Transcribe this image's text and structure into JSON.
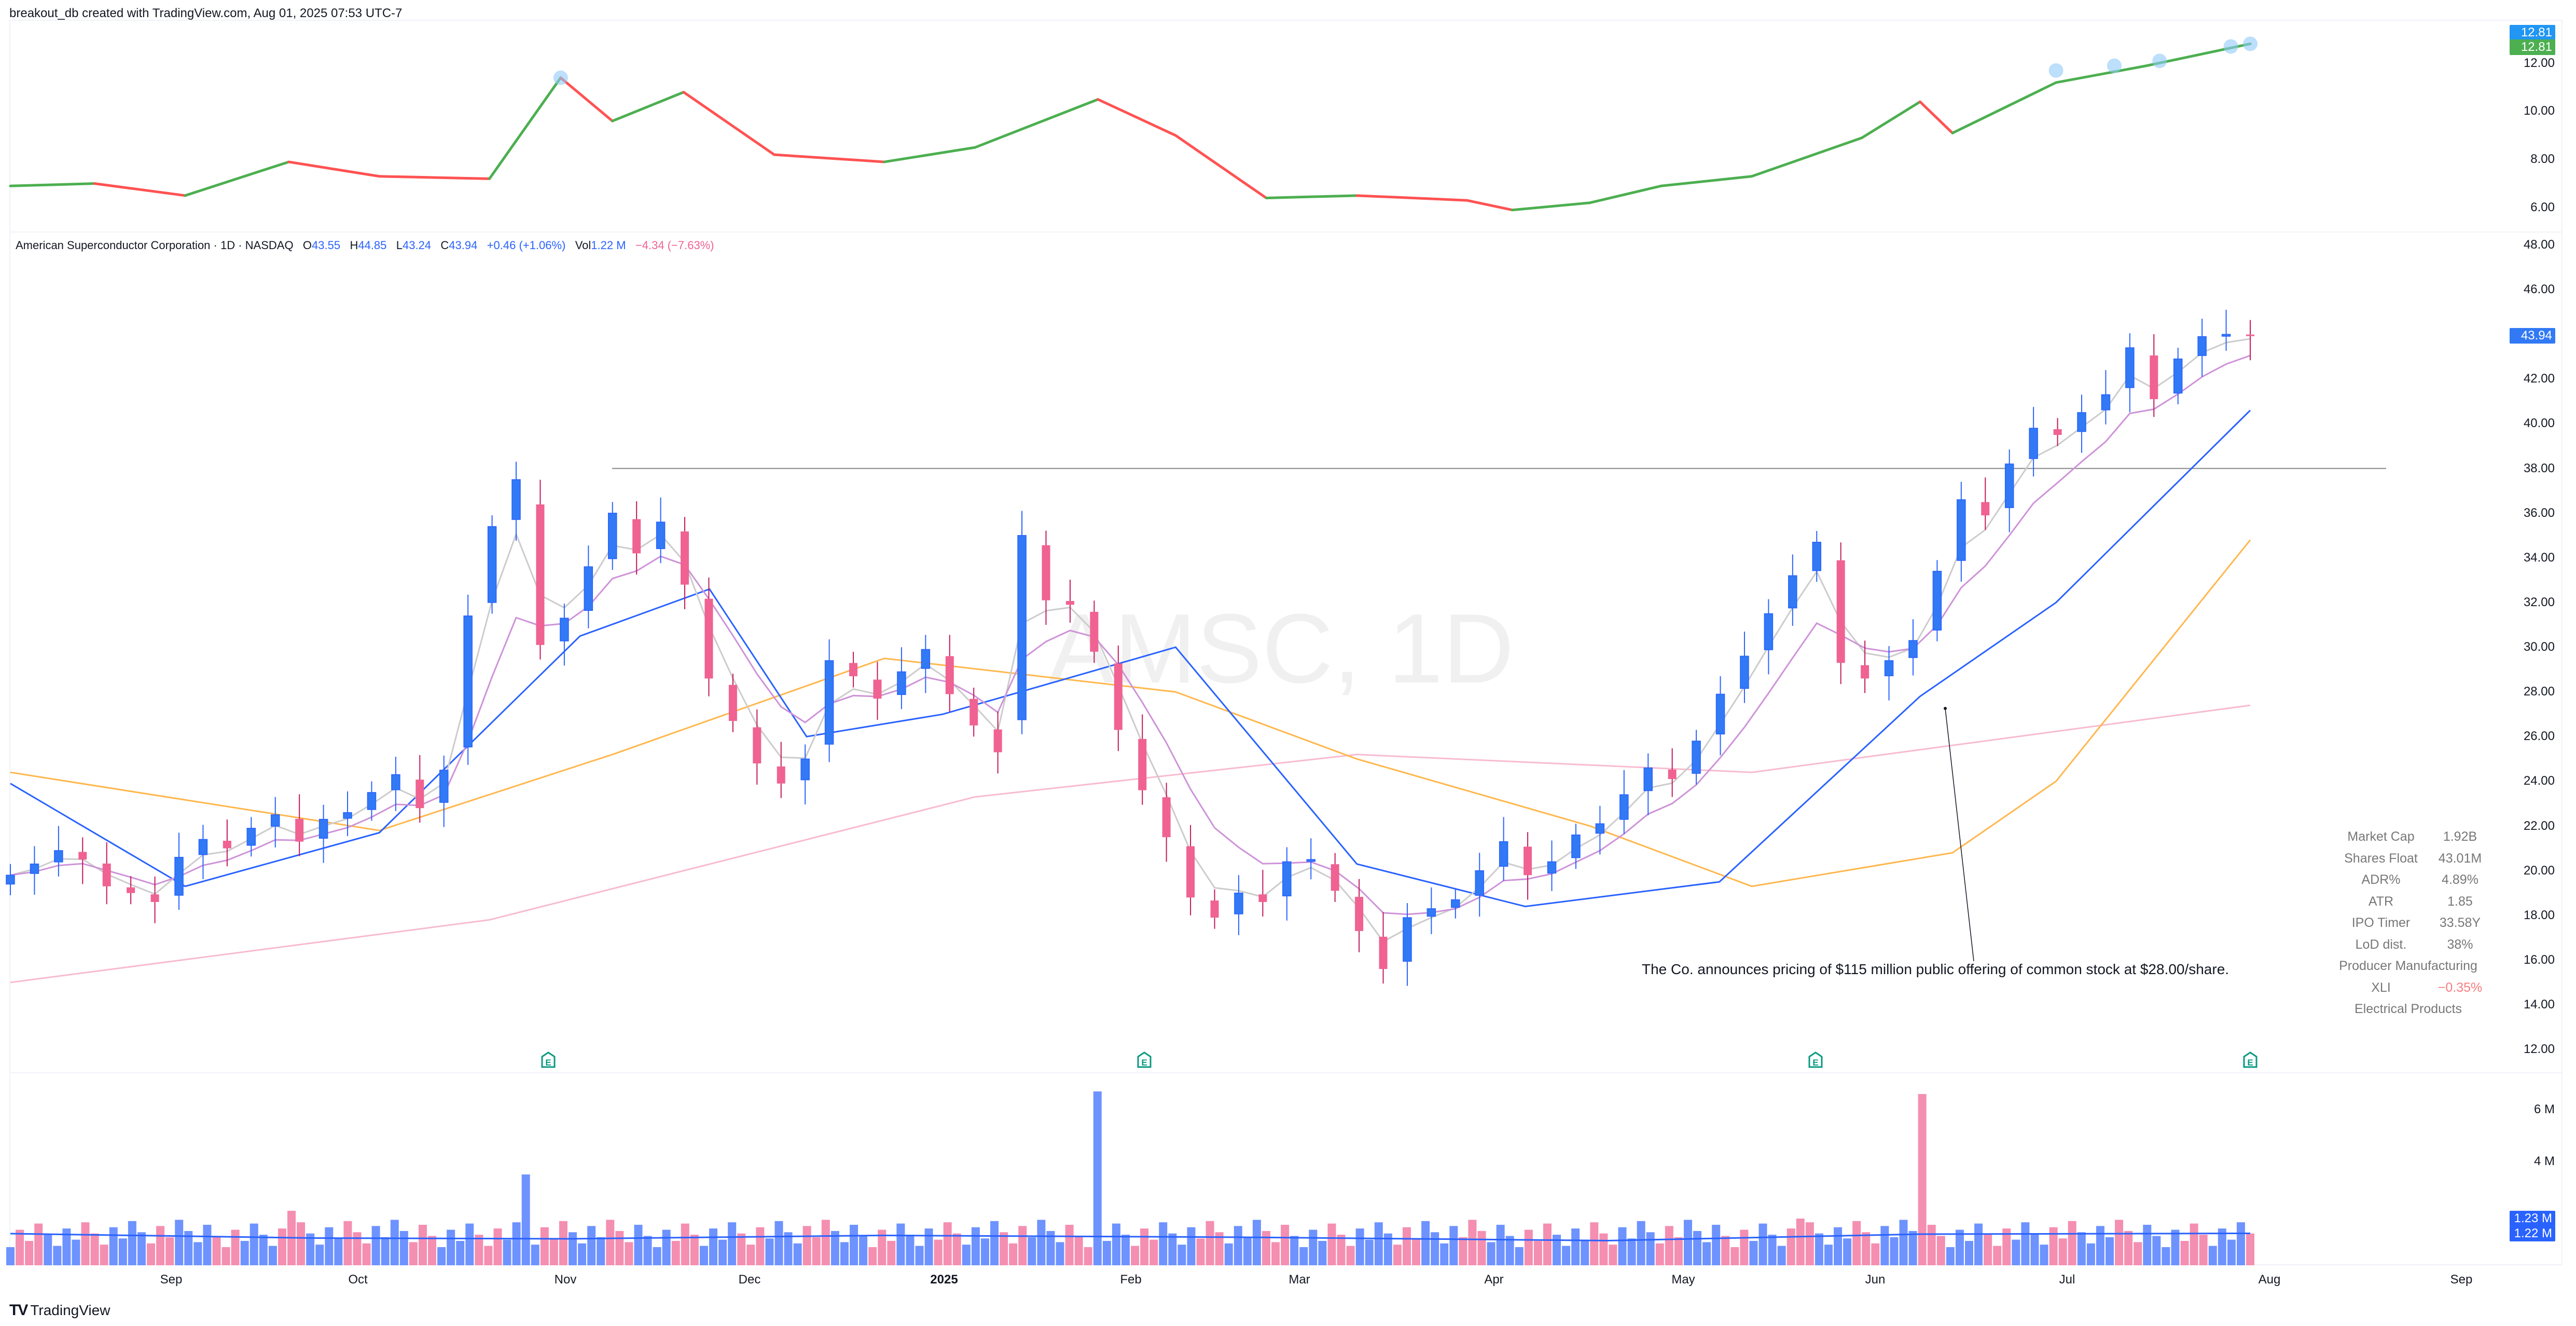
{
  "header": {
    "attribution": "breakout_db created with TradingView.com, Aug 01, 2025 07:53 UTC-7"
  },
  "legend": {
    "title": "American Superconductor Corporation · 1D · NASDAQ",
    "open_label": "O",
    "open": "43.55",
    "high_label": "H",
    "high": "44.85",
    "low_label": "L",
    "low": "43.24",
    "close_label": "C",
    "close": "43.94",
    "change": "+0.46 (+1.06%)",
    "vol_label": "Vol",
    "vol": "1.22 M",
    "rs_change": "−4.34 (−7.63%)"
  },
  "watermark": "AMSC, 1D",
  "annotation": {
    "text": "The Co. announces pricing of $115 million public offering of common stock at $28.00/share."
  },
  "stats_table": [
    {
      "key": "Market Cap",
      "value": "1.92B"
    },
    {
      "key": "Shares Float",
      "value": "43.01M"
    },
    {
      "key": "ADR%",
      "value": "4.89%"
    },
    {
      "key": "ATR",
      "value": "1.85"
    },
    {
      "key": "IPO Timer",
      "value": "33.58Y"
    },
    {
      "key": "LoD dist.",
      "value": "38%"
    },
    {
      "full": "Producer Manufacturing"
    },
    {
      "key": "XLI",
      "value": "−0.35%",
      "negative": true
    },
    {
      "full": "Electrical Products"
    }
  ],
  "tags": {
    "rs_a": "12.81",
    "rs_b": "12.81",
    "last_price": "43.94",
    "vol_ma": "1.23 M",
    "vol": "1.22 M"
  },
  "footer": {
    "logo": "TV",
    "brand": "TradingView"
  },
  "colors": {
    "up": "#2962ff",
    "up_body": "#3179f5",
    "down": "#f06292",
    "down_wick": "#c2185b",
    "vol_up": "#6e93ff",
    "vol_down": "#f48fb1",
    "ema_fast": "#cccccc",
    "ema_10": "#ce93d8",
    "ema_21": "#2962ff",
    "sma_50": "#ffb74d",
    "sma_200": "#f8bbd0",
    "rs_up": "#4caf50",
    "rs_down": "#ff5252",
    "rs_highlight": "#90caf9",
    "tag_blue": "#2196f3",
    "tag_green": "#4caf50",
    "tag_price": "#3179f5",
    "tag_vol": "#2962ff",
    "earnings": "#089981"
  },
  "chart_data": [
    {
      "type": "line",
      "title": "Relative strength line (top pane)",
      "ylim": [
        5.5,
        13.2
      ],
      "yticks": [
        "12.00",
        "10.00",
        "8.00",
        "6.00"
      ],
      "x": [
        "2024-08-19",
        "2024-09-01",
        "2024-09-15",
        "2024-10-01",
        "2024-10-15",
        "2024-11-01",
        "2024-11-12",
        "2024-11-20",
        "2024-12-01",
        "2024-12-15",
        "2025-01-01",
        "2025-01-15",
        "2025-02-03",
        "2025-02-15",
        "2025-03-01",
        "2025-03-15",
        "2025-04-01",
        "2025-04-08",
        "2025-04-20",
        "2025-05-01",
        "2025-05-15",
        "2025-06-01",
        "2025-06-10",
        "2025-06-15",
        "2025-07-01",
        "2025-07-15",
        "2025-07-31"
      ],
      "values": [
        6.9,
        7.0,
        6.5,
        7.9,
        7.3,
        7.2,
        11.4,
        9.6,
        10.8,
        8.2,
        7.9,
        8.5,
        10.5,
        9.0,
        6.4,
        6.5,
        6.3,
        5.9,
        6.2,
        6.9,
        7.3,
        8.9,
        10.4,
        9.1,
        11.2,
        11.9,
        12.81
      ],
      "colors": {
        "rising": "#4caf50",
        "falling": "#ff5252"
      }
    },
    {
      "type": "candlestick",
      "title": "American Superconductor Corporation · 1D · NASDAQ (AMSC)",
      "ylim": [
        11.5,
        49.0
      ],
      "yticks": [
        "48.00",
        "46.00",
        "44.00",
        "42.00",
        "40.00",
        "38.00",
        "36.00",
        "34.00",
        "32.00",
        "30.00",
        "28.00",
        "26.00",
        "24.00",
        "22.00",
        "20.00",
        "18.00",
        "16.00",
        "14.00",
        "12.00"
      ],
      "xticks": [
        "Sep",
        "Oct",
        "Nov",
        "Dec",
        "2025",
        "Feb",
        "Mar",
        "Apr",
        "May",
        "Jun",
        "Jul",
        "Aug",
        "Sep"
      ],
      "last": {
        "open": 43.55,
        "high": 44.85,
        "low": 43.24,
        "close": 43.94
      },
      "horizontal_line": 38.0,
      "approx_closes": [
        19.8,
        20.3,
        20.9,
        20.5,
        19.3,
        19.0,
        18.6,
        20.6,
        21.4,
        21.0,
        21.9,
        22.5,
        21.3,
        22.3,
        22.6,
        23.5,
        24.3,
        22.8,
        24.5,
        31.4,
        35.4,
        37.5,
        30.1,
        31.3,
        33.6,
        36.0,
        34.2,
        35.6,
        32.8,
        28.6,
        26.7,
        24.8,
        23.9,
        25.0,
        29.4,
        28.7,
        27.7,
        28.9,
        29.9,
        27.9,
        26.5,
        25.3,
        35.0,
        32.1,
        31.9,
        29.8,
        26.3,
        23.6,
        21.5,
        18.8,
        17.9,
        19.0,
        18.6,
        20.4,
        20.5,
        19.1,
        17.3,
        15.6,
        17.9,
        18.3,
        18.7,
        20.0,
        21.3,
        19.8,
        20.4,
        21.6,
        22.1,
        23.4,
        24.6,
        24.1,
        25.8,
        27.9,
        29.6,
        31.5,
        33.2,
        34.7,
        29.3,
        28.6,
        29.4,
        30.3,
        33.4,
        36.6,
        35.9,
        38.2,
        39.8,
        39.5,
        40.5,
        41.3,
        43.4,
        41.1,
        42.9,
        43.9,
        44.0,
        43.94
      ],
      "moving_averages": [
        {
          "name": "EMA fast",
          "color": "#cccccc"
        },
        {
          "name": "EMA 10",
          "color": "#ce93d8"
        },
        {
          "name": "EMA 21",
          "color": "#2962ff"
        },
        {
          "name": "SMA 50",
          "color": "#ffb74d"
        },
        {
          "name": "SMA 200",
          "color": "#f8bbd0"
        }
      ],
      "ma_approx": {
        "ema21": [
          {
            "x": "2024-08-19",
            "y": 23.9
          },
          {
            "x": "2024-09-15",
            "y": 19.3
          },
          {
            "x": "2024-10-15",
            "y": 21.7
          },
          {
            "x": "2024-11-15",
            "y": 30.5
          },
          {
            "x": "2024-12-05",
            "y": 32.6
          },
          {
            "x": "2024-12-20",
            "y": 26.0
          },
          {
            "x": "2025-01-10",
            "y": 27.0
          },
          {
            "x": "2025-02-15",
            "y": 30.0
          },
          {
            "x": "2025-03-15",
            "y": 20.3
          },
          {
            "x": "2025-04-10",
            "y": 18.4
          },
          {
            "x": "2025-05-10",
            "y": 19.5
          },
          {
            "x": "2025-06-10",
            "y": 27.8
          },
          {
            "x": "2025-07-01",
            "y": 32.0
          },
          {
            "x": "2025-07-31",
            "y": 40.6
          }
        ],
        "sma50": [
          {
            "x": "2024-08-19",
            "y": 24.4
          },
          {
            "x": "2024-10-15",
            "y": 21.8
          },
          {
            "x": "2024-11-20",
            "y": 25.2
          },
          {
            "x": "2025-01-01",
            "y": 29.5
          },
          {
            "x": "2025-02-15",
            "y": 28.0
          },
          {
            "x": "2025-03-15",
            "y": 25.0
          },
          {
            "x": "2025-04-20",
            "y": 22.0
          },
          {
            "x": "2025-05-15",
            "y": 19.3
          },
          {
            "x": "2025-06-15",
            "y": 20.8
          },
          {
            "x": "2025-07-01",
            "y": 24.0
          },
          {
            "x": "2025-07-31",
            "y": 34.8
          }
        ],
        "sma200": [
          {
            "x": "2024-08-19",
            "y": 15.0
          },
          {
            "x": "2024-11-01",
            "y": 17.8
          },
          {
            "x": "2025-01-15",
            "y": 23.3
          },
          {
            "x": "2025-03-15",
            "y": 25.2
          },
          {
            "x": "2025-05-15",
            "y": 24.4
          },
          {
            "x": "2025-07-31",
            "y": 27.4
          }
        ]
      },
      "earnings_markers": [
        "2024-11-06",
        "2025-02-05",
        "2025-05-22",
        "2025-07-30"
      ]
    },
    {
      "type": "bar",
      "title": "Volume",
      "ylabel": "Volume",
      "ylim": [
        0,
        6.8
      ],
      "yticks": [
        "6 M",
        "4 M"
      ],
      "last_volume_m": 1.22,
      "volume_ma_m": 1.23,
      "peaks_m": [
        {
          "x": "2024-11-07",
          "v": 3.5
        },
        {
          "x": "2024-10-02",
          "v": 2.1
        },
        {
          "x": "2025-02-03",
          "v": 6.7
        },
        {
          "x": "2025-06-11",
          "v": 6.6
        },
        {
          "x": "2025-05-22",
          "v": 1.8
        }
      ]
    }
  ]
}
